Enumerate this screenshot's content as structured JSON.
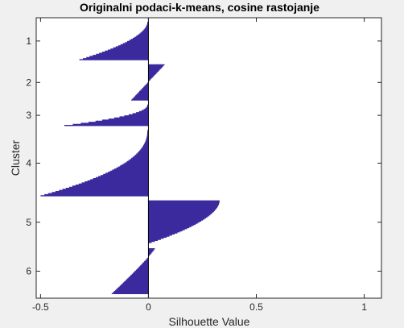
{
  "chart_data": {
    "type": "bar",
    "title": "Originalni podaci-k-means, cosine rastojanje",
    "xlabel": "Silhouette Value",
    "ylabel": "Cluster",
    "xlim": [
      -0.52,
      1.08
    ],
    "xticks": [
      -0.5,
      0,
      0.5,
      1
    ],
    "xtick_labels": [
      "-0.5",
      "0",
      "0.5",
      "1"
    ],
    "bar_color": "#3a2a9e",
    "grid": false,
    "orientation": "horizontal",
    "clusters": [
      {
        "label": "1",
        "count": 36,
        "min": -0.32,
        "max": -0.005,
        "shape": 0.55
      },
      {
        "label": "2",
        "count": 34,
        "min": -0.08,
        "max": 0.075,
        "shape": 1.0
      },
      {
        "label": "3",
        "count": 20,
        "min": -0.39,
        "max": -0.005,
        "shape": 0.5
      },
      {
        "label": "4",
        "count": 62,
        "min": -0.5,
        "max": -0.005,
        "shape": 0.45
      },
      {
        "label": "5",
        "count": 41,
        "min": 0.0,
        "max": 0.33,
        "shape": 0.55
      },
      {
        "label": "6",
        "count": 43,
        "min": -0.17,
        "max": 0.03,
        "shape": 0.9
      }
    ]
  }
}
